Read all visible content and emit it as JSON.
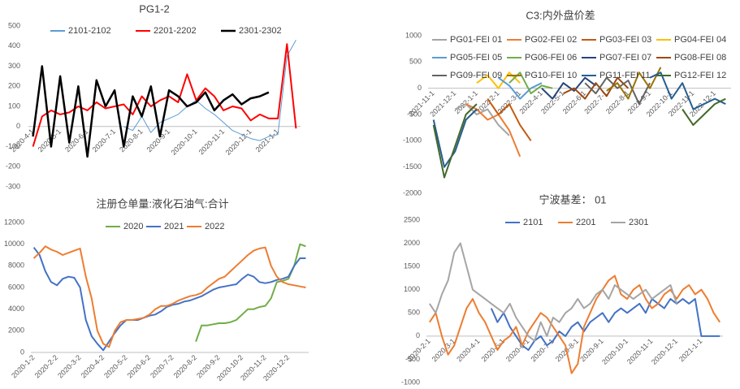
{
  "chart_data": [
    {
      "type": "line",
      "title": "PG1-2",
      "categories": [
        "2020-4-1",
        null,
        null,
        "2020-5-1",
        null,
        null,
        "2020-6-1",
        null,
        null,
        "2020-7-1",
        null,
        null,
        "2020-8-1",
        null,
        null,
        "2020-9-1",
        null,
        null,
        "2020-10-1",
        null,
        null,
        "2020-11-1",
        null,
        null,
        "2020-12-1",
        null,
        null,
        "2021-1-1",
        null,
        null
      ],
      "ylim": [
        -300,
        500
      ],
      "yticks": [
        -300,
        -200,
        -100,
        0,
        100,
        200,
        300,
        400,
        500
      ],
      "grid": false,
      "series": [
        {
          "name": "2101-2102",
          "color": "#5b9bd5",
          "width": 1,
          "values": [
            null,
            null,
            null,
            null,
            null,
            null,
            null,
            null,
            null,
            null,
            0,
            -20,
            50,
            -30,
            20,
            40,
            60,
            100,
            130,
            90,
            60,
            20,
            -20,
            -40,
            -60,
            -70,
            -50,
            -40,
            350,
            430
          ]
        },
        {
          "name": "2201-2202",
          "color": "#ff0000",
          "width": 2,
          "values": [
            -100,
            50,
            80,
            60,
            70,
            100,
            80,
            120,
            90,
            100,
            110,
            60,
            150,
            100,
            130,
            150,
            120,
            260,
            130,
            190,
            150,
            80,
            100,
            90,
            30,
            60,
            40,
            40,
            410,
            -10
          ]
        },
        {
          "name": "2301-2302",
          "color": "#000000",
          "width": 2.5,
          "values": [
            -50,
            300,
            -100,
            250,
            -80,
            200,
            -150,
            230,
            100,
            180,
            -100,
            150,
            50,
            200,
            -50,
            180,
            150,
            100,
            120,
            170,
            80,
            130,
            160,
            110,
            140,
            150,
            170,
            null,
            null,
            null
          ]
        }
      ]
    },
    {
      "type": "line",
      "title": "C3:内外盘价差",
      "categories": [
        "2021-11-1",
        null,
        "2021-12-1",
        null,
        "2022-1-1",
        null,
        "2022-2-1",
        null,
        "2022-3-1",
        null,
        "2022-4-1",
        null,
        "2022-5-1",
        null,
        "2022-6-1",
        null,
        "2022-7-1",
        null,
        "2022-8-1",
        null,
        "2022-9-1",
        null,
        "2022-10-1",
        null,
        "2022-11-1",
        null,
        "2022-12-1",
        null
      ],
      "ylim": [
        -2000,
        1000
      ],
      "yticks": [
        -2000,
        -1500,
        -1000,
        -500,
        0,
        500,
        1000
      ],
      "grid": false,
      "series": [
        {
          "name": "PG01-FEI 01",
          "color": "#a5a5a5",
          "width": 2,
          "values": [
            null,
            null,
            -400,
            -300,
            -500,
            -400,
            -700,
            -900,
            null,
            null,
            null,
            null,
            null,
            null,
            null,
            null,
            null,
            null,
            null,
            null,
            null,
            null,
            null,
            null,
            null,
            null,
            null,
            null
          ]
        },
        {
          "name": "PG02-FEI 02",
          "color": "#ed7d31",
          "width": 2,
          "values": [
            null,
            null,
            null,
            -300,
            -400,
            -600,
            -500,
            -800,
            -1300,
            null,
            null,
            null,
            null,
            null,
            null,
            null,
            null,
            null,
            null,
            null,
            null,
            null,
            null,
            null,
            null,
            null,
            null,
            null
          ]
        },
        {
          "name": "PG03-FEI 03",
          "color": "#c55a11",
          "width": 2,
          "values": [
            null,
            null,
            null,
            null,
            null,
            -200,
            -500,
            -300,
            -700,
            -1000,
            null,
            null,
            null,
            null,
            null,
            null,
            null,
            null,
            null,
            null,
            null,
            null,
            null,
            null,
            null,
            null,
            null,
            null
          ]
        },
        {
          "name": "PG04-FEI 04",
          "color": "#ffc000",
          "width": 2,
          "values": [
            null,
            null,
            null,
            null,
            100,
            250,
            0,
            300,
            100,
            null,
            null,
            null,
            null,
            null,
            null,
            null,
            null,
            null,
            null,
            null,
            null,
            null,
            null,
            null,
            null,
            null,
            null,
            null
          ]
        },
        {
          "name": "PG05-FEI 05",
          "color": "#5b9bd5",
          "width": 2,
          "values": [
            null,
            null,
            null,
            null,
            null,
            null,
            200,
            50,
            -200,
            0,
            100,
            null,
            null,
            null,
            null,
            null,
            null,
            null,
            null,
            null,
            null,
            null,
            null,
            null,
            null,
            null,
            null,
            null
          ]
        },
        {
          "name": "PG06-FEI 06",
          "color": "#70ad47",
          "width": 2,
          "values": [
            null,
            null,
            null,
            null,
            null,
            null,
            null,
            100,
            300,
            -100,
            50,
            0,
            null,
            null,
            null,
            null,
            null,
            null,
            null,
            null,
            null,
            null,
            null,
            null,
            null,
            null,
            null,
            null
          ]
        },
        {
          "name": "PG07-FEI 07",
          "color": "#264478",
          "width": 2,
          "values": [
            null,
            null,
            null,
            null,
            null,
            null,
            null,
            null,
            null,
            null,
            0,
            -200,
            100,
            -50,
            200,
            50,
            null,
            null,
            null,
            null,
            null,
            null,
            null,
            null,
            null,
            null,
            null,
            null
          ]
        },
        {
          "name": "PG08-FEI 08",
          "color": "#9e480e",
          "width": 2,
          "values": [
            null,
            null,
            null,
            null,
            null,
            null,
            null,
            null,
            null,
            null,
            null,
            null,
            -100,
            0,
            -200,
            100,
            -150,
            200,
            0,
            null,
            null,
            null,
            null,
            null,
            null,
            null,
            null,
            null
          ]
        },
        {
          "name": "PG09-FEI 09",
          "color": "#636363",
          "width": 2,
          "values": [
            null,
            null,
            null,
            null,
            null,
            null,
            null,
            null,
            null,
            null,
            null,
            null,
            null,
            null,
            100,
            -100,
            200,
            0,
            150,
            -300,
            100,
            null,
            null,
            null,
            null,
            null,
            null,
            null
          ]
        },
        {
          "name": "PG10-FEI 10",
          "color": "#997300",
          "width": 2,
          "values": [
            null,
            null,
            null,
            null,
            null,
            null,
            null,
            null,
            null,
            null,
            null,
            null,
            null,
            null,
            null,
            null,
            -50,
            100,
            -200,
            300,
            0,
            400,
            null,
            null,
            null,
            null,
            null,
            null
          ]
        },
        {
          "name": "PG11-FEI 11",
          "color": "#255e91",
          "width": 2,
          "values": [
            -600,
            -1500,
            -1200,
            -600,
            -400,
            null,
            null,
            null,
            null,
            null,
            null,
            null,
            null,
            null,
            null,
            null,
            null,
            null,
            null,
            null,
            200,
            300,
            -200,
            100,
            -400,
            -300,
            -200,
            -300
          ]
        },
        {
          "name": "PG12-FEI 12",
          "color": "#43682b",
          "width": 2,
          "values": [
            -700,
            -1700,
            -1100,
            -500,
            -300,
            null,
            null,
            null,
            null,
            null,
            null,
            null,
            null,
            null,
            null,
            null,
            null,
            null,
            null,
            null,
            null,
            null,
            null,
            -400,
            -700,
            -500,
            -300,
            -200
          ]
        }
      ]
    },
    {
      "type": "line",
      "title": "注册仓单量:液化石油气:合计",
      "categories": [
        "2020-1-2",
        null,
        null,
        null,
        "2020-2-2",
        null,
        null,
        null,
        "2020-3-2",
        null,
        null,
        null,
        "2020-4-2",
        null,
        null,
        null,
        "2020-5-2",
        null,
        null,
        null,
        "2020-6-2",
        null,
        null,
        null,
        "2020-7-2",
        null,
        null,
        null,
        "2020-8-2",
        null,
        null,
        null,
        "2020-9-2",
        null,
        null,
        null,
        "2020-10-2",
        null,
        null,
        null,
        "2020-11-2",
        null,
        null,
        null,
        "2020-12-2",
        null,
        null,
        null
      ],
      "ylim": [
        0,
        12000
      ],
      "yticks": [
        0,
        2000,
        4000,
        6000,
        8000,
        10000,
        12000
      ],
      "grid": false,
      "series": [
        {
          "name": "2020",
          "color": "#70ad47",
          "width": 2,
          "values": [
            null,
            null,
            null,
            null,
            null,
            null,
            null,
            null,
            null,
            null,
            null,
            null,
            null,
            null,
            null,
            null,
            null,
            null,
            null,
            null,
            null,
            null,
            null,
            null,
            null,
            null,
            null,
            null,
            1000,
            2500,
            2500,
            2600,
            2700,
            2700,
            2800,
            3000,
            3500,
            4000,
            4000,
            4200,
            4300,
            5000,
            6500,
            6600,
            6800,
            8000,
            10000,
            9800
          ]
        },
        {
          "name": "2021",
          "color": "#4472c4",
          "width": 2,
          "values": [
            9700,
            9000,
            7500,
            6500,
            6200,
            6800,
            7000,
            6900,
            6000,
            3000,
            1500,
            800,
            200,
            1000,
            1800,
            2500,
            3000,
            3000,
            3000,
            3200,
            3400,
            3500,
            3800,
            4200,
            4400,
            4500,
            4700,
            4800,
            5000,
            5200,
            5500,
            5800,
            6000,
            6100,
            6200,
            6300,
            6800,
            7200,
            7000,
            6500,
            6400,
            6500,
            6700,
            6800,
            7000,
            8000,
            8700,
            8700
          ]
        },
        {
          "name": "2022",
          "color": "#ed7d31",
          "width": 2,
          "values": [
            8700,
            9200,
            9800,
            9500,
            9300,
            9000,
            9200,
            9400,
            9600,
            7000,
            5000,
            2000,
            800,
            500,
            2000,
            2800,
            3000,
            3000,
            3100,
            3200,
            3500,
            4000,
            4300,
            4300,
            4500,
            4800,
            5000,
            5200,
            5300,
            5500,
            6000,
            6400,
            6800,
            7000,
            7500,
            8000,
            8500,
            9000,
            9400,
            9600,
            9700,
            8000,
            7000,
            6500,
            6300,
            6200,
            6100,
            6000
          ]
        }
      ]
    },
    {
      "type": "line",
      "title": "宁波基差： 01",
      "categories": [
        "2020-2-1",
        null,
        null,
        null,
        "2020-3-1",
        null,
        null,
        null,
        "2020-4-1",
        null,
        null,
        null,
        "2020-5-1",
        null,
        null,
        null,
        "2020-6-1",
        null,
        null,
        null,
        "2020-7-1",
        null,
        null,
        null,
        "2020-8-1",
        null,
        null,
        null,
        "2020-9-1",
        null,
        null,
        null,
        "2020-10-1",
        null,
        null,
        null,
        "2020-11-1",
        null,
        null,
        null,
        "2020-12-1",
        null,
        null,
        null,
        "2021-1-1",
        null,
        null,
        null
      ],
      "ylim": [
        -1000,
        2500
      ],
      "yticks": [
        -1000,
        -500,
        0,
        500,
        1000,
        1500,
        2000,
        2500
      ],
      "grid": false,
      "series": [
        {
          "name": "2101",
          "color": "#4472c4",
          "width": 2,
          "values": [
            null,
            null,
            null,
            null,
            null,
            null,
            null,
            null,
            null,
            null,
            600,
            300,
            500,
            200,
            0,
            -200,
            -300,
            -100,
            0,
            -200,
            -100,
            100,
            0,
            200,
            300,
            100,
            300,
            400,
            500,
            300,
            500,
            600,
            500,
            600,
            700,
            500,
            800,
            700,
            600,
            800,
            700,
            800,
            700,
            800,
            0,
            0,
            0,
            0
          ]
        },
        {
          "name": "2201",
          "color": "#ed7d31",
          "width": 2,
          "values": [
            300,
            500,
            0,
            -400,
            -200,
            200,
            600,
            800,
            500,
            300,
            0,
            -300,
            -100,
            0,
            200,
            -200,
            100,
            300,
            500,
            400,
            200,
            0,
            -200,
            -800,
            -600,
            200,
            500,
            800,
            1000,
            1200,
            1300,
            900,
            800,
            1000,
            1100,
            800,
            600,
            700,
            900,
            1000,
            800,
            1000,
            1100,
            900,
            1000,
            800,
            500,
            300
          ]
        },
        {
          "name": "2301",
          "color": "#a5a5a5",
          "width": 2,
          "values": [
            700,
            500,
            900,
            1200,
            1800,
            2000,
            1500,
            1000,
            900,
            800,
            700,
            600,
            500,
            700,
            400,
            200,
            0,
            -100,
            300,
            0,
            400,
            300,
            500,
            600,
            800,
            600,
            700,
            900,
            1000,
            800,
            1100,
            1000,
            900,
            800,
            900,
            1000,
            800,
            900,
            1000,
            1100,
            700,
            null,
            null,
            null,
            null,
            null,
            null,
            null
          ]
        }
      ]
    }
  ]
}
